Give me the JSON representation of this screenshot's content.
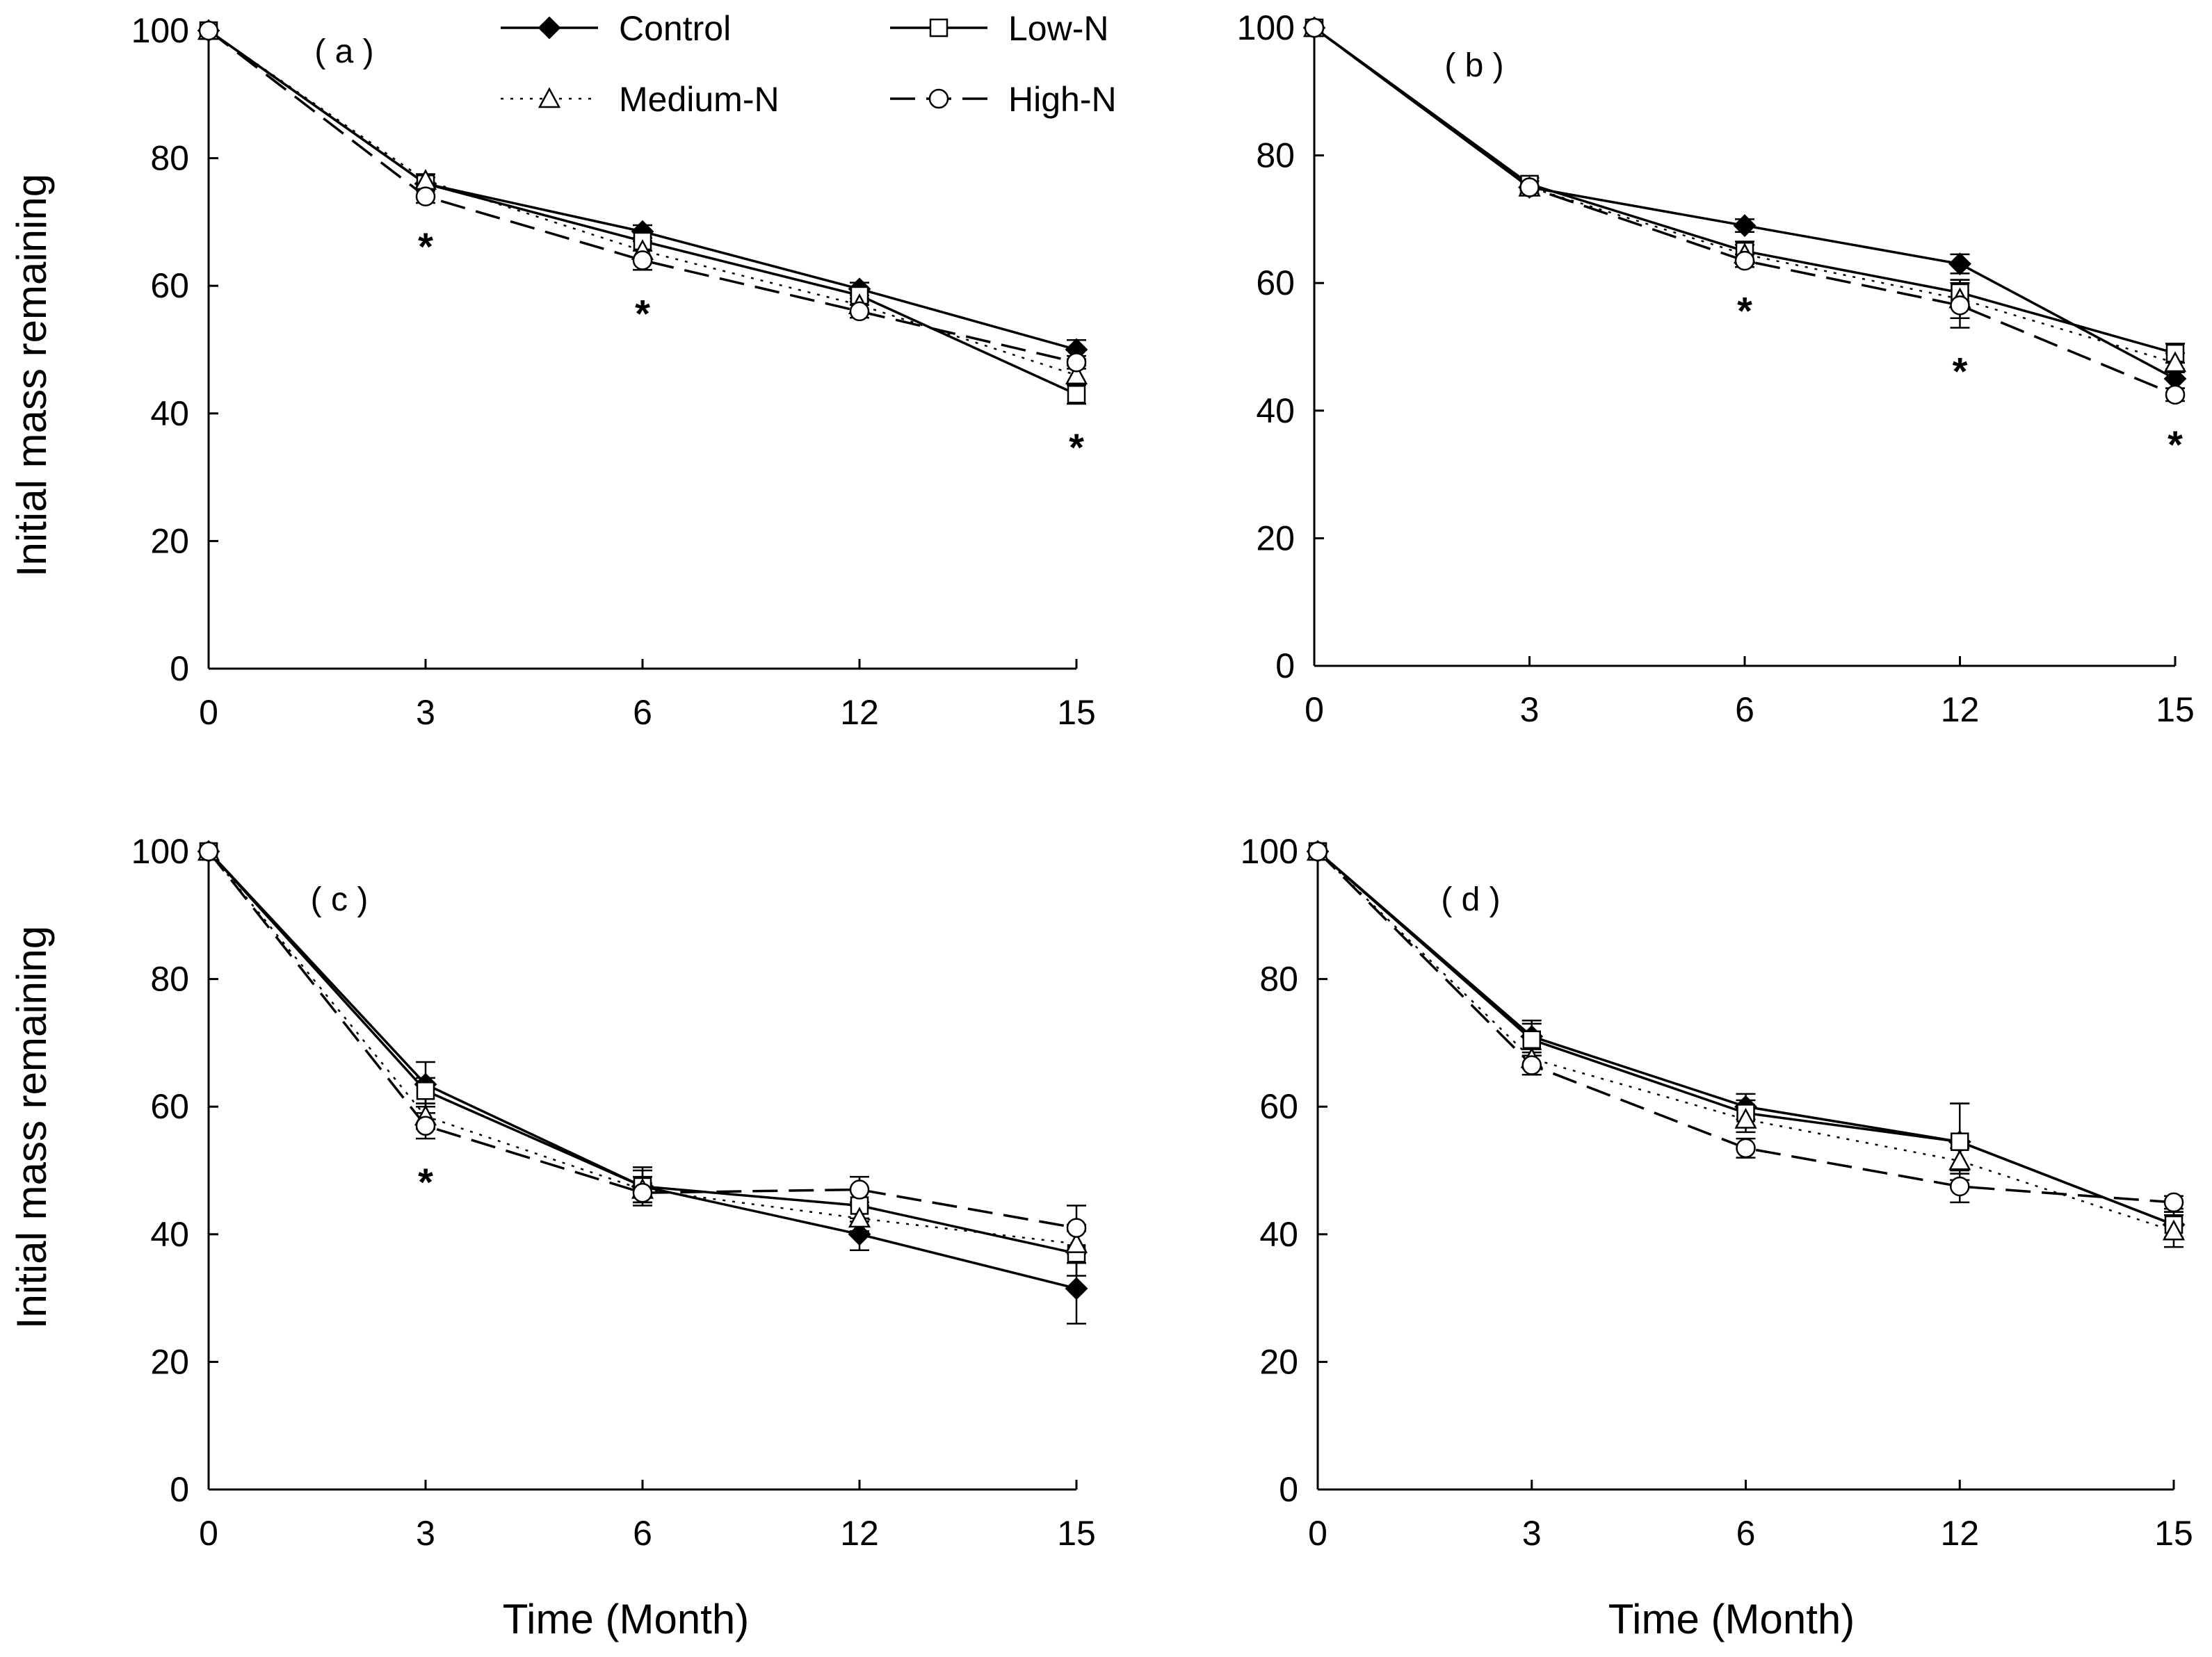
{
  "figure": {
    "xlabel": "Time (Month)",
    "ylabel": "Initial mass remaining"
  },
  "legend": [
    {
      "name": "Control",
      "marker": "diamond-filled",
      "dash": "solid"
    },
    {
      "name": "Low-N",
      "marker": "square-open",
      "dash": "solid"
    },
    {
      "name": "Medium-N",
      "marker": "triangle-open",
      "dash": "dotted"
    },
    {
      "name": "High-N",
      "marker": "circle-open",
      "dash": "dashed"
    }
  ],
  "chart_data": [
    {
      "type": "line",
      "panel": "( a )",
      "categories": [
        "0",
        "3",
        "6",
        "12",
        "15"
      ],
      "xlabel": "",
      "ylabel": "Initial mass remaining",
      "ylim": [
        0,
        100
      ],
      "yticks": [
        0,
        20,
        40,
        60,
        80,
        100
      ],
      "series": [
        {
          "name": "Control",
          "values": [
            100,
            76,
            68.5,
            59.5,
            50
          ],
          "errors": [
            0,
            1,
            1,
            1,
            1.5
          ]
        },
        {
          "name": "Low-N",
          "values": [
            100,
            76,
            67,
            58.5,
            43
          ],
          "errors": [
            0,
            1,
            1.5,
            1,
            1.5
          ]
        },
        {
          "name": "Medium-N",
          "values": [
            100,
            76.5,
            65.5,
            57,
            46
          ],
          "errors": [
            0,
            1,
            1.5,
            1,
            1.5
          ]
        },
        {
          "name": "High-N",
          "values": [
            100,
            74,
            64,
            56,
            48
          ],
          "errors": [
            0,
            1,
            1.5,
            1,
            1
          ]
        }
      ],
      "significance": [
        {
          "x": "3",
          "label": "*"
        },
        {
          "x": "6",
          "label": "*"
        },
        {
          "x": "15",
          "label": "*"
        }
      ]
    },
    {
      "type": "line",
      "panel": "( b )",
      "categories": [
        "0",
        "3",
        "6",
        "12",
        "15"
      ],
      "xlabel": "",
      "ylabel": "",
      "ylim": [
        0,
        100
      ],
      "yticks": [
        0,
        20,
        40,
        60,
        80,
        100
      ],
      "series": [
        {
          "name": "Control",
          "values": [
            100,
            75,
            69,
            63,
            45
          ],
          "errors": [
            0,
            1,
            1,
            1.5,
            1.5
          ]
        },
        {
          "name": "Low-N",
          "values": [
            100,
            75.5,
            65,
            58.5,
            49
          ],
          "errors": [
            0,
            1,
            1.5,
            2,
            1.5
          ]
        },
        {
          "name": "Medium-N",
          "values": [
            100,
            75,
            64.5,
            57.5,
            47.5
          ],
          "errors": [
            0,
            1,
            1.5,
            3,
            1.5
          ]
        },
        {
          "name": "High-N",
          "values": [
            100,
            75,
            63.5,
            56.5,
            42.5
          ],
          "errors": [
            0,
            1,
            1,
            3.5,
            1
          ]
        }
      ],
      "significance": [
        {
          "x": "6",
          "label": "*"
        },
        {
          "x": "12",
          "label": "*"
        },
        {
          "x": "15",
          "label": "*"
        }
      ]
    },
    {
      "type": "line",
      "panel": "( c )",
      "categories": [
        "0",
        "3",
        "6",
        "12",
        "15"
      ],
      "xlabel": "Time (Month)",
      "ylabel": "Initial mass remaining",
      "ylim": [
        0,
        100
      ],
      "yticks": [
        0,
        20,
        40,
        60,
        80,
        100
      ],
      "series": [
        {
          "name": "Control",
          "values": [
            100,
            63.5,
            47.5,
            40,
            31.5
          ],
          "errors": [
            0,
            3.5,
            3,
            2.5,
            5.5
          ]
        },
        {
          "name": "Low-N",
          "values": [
            100,
            62.5,
            47.5,
            44.5,
            37
          ],
          "errors": [
            0,
            2,
            2.5,
            2.5,
            3.5
          ]
        },
        {
          "name": "Medium-N",
          "values": [
            100,
            58.5,
            47,
            42.5,
            38.5
          ],
          "errors": [
            0,
            2,
            2,
            2,
            3
          ]
        },
        {
          "name": "High-N",
          "values": [
            100,
            57,
            46.5,
            47,
            41
          ],
          "errors": [
            0,
            2,
            1.5,
            2,
            3.5
          ]
        }
      ],
      "significance": [
        {
          "x": "3",
          "label": "*"
        }
      ]
    },
    {
      "type": "line",
      "panel": "( d )",
      "categories": [
        "0",
        "3",
        "6",
        "12",
        "15"
      ],
      "xlabel": "Time (Month)",
      "ylabel": "",
      "ylim": [
        0,
        100
      ],
      "yticks": [
        0,
        20,
        40,
        60,
        80,
        100
      ],
      "series": [
        {
          "name": "Control",
          "values": [
            100,
            71,
            60,
            54.5,
            41.5
          ],
          "errors": [
            0,
            2.5,
            2,
            6,
            2
          ]
        },
        {
          "name": "Low-N",
          "values": [
            100,
            70.5,
            59,
            54.5,
            41.5
          ],
          "errors": [
            0,
            2.5,
            2,
            6,
            2
          ]
        },
        {
          "name": "Medium-N",
          "values": [
            100,
            67.5,
            58,
            51.5,
            40.5
          ],
          "errors": [
            0,
            1.5,
            2,
            2,
            2.5
          ]
        },
        {
          "name": "High-N",
          "values": [
            100,
            66.5,
            53.5,
            47.5,
            45
          ],
          "errors": [
            0,
            1.5,
            1.5,
            2.5,
            1
          ]
        }
      ],
      "significance": []
    }
  ]
}
